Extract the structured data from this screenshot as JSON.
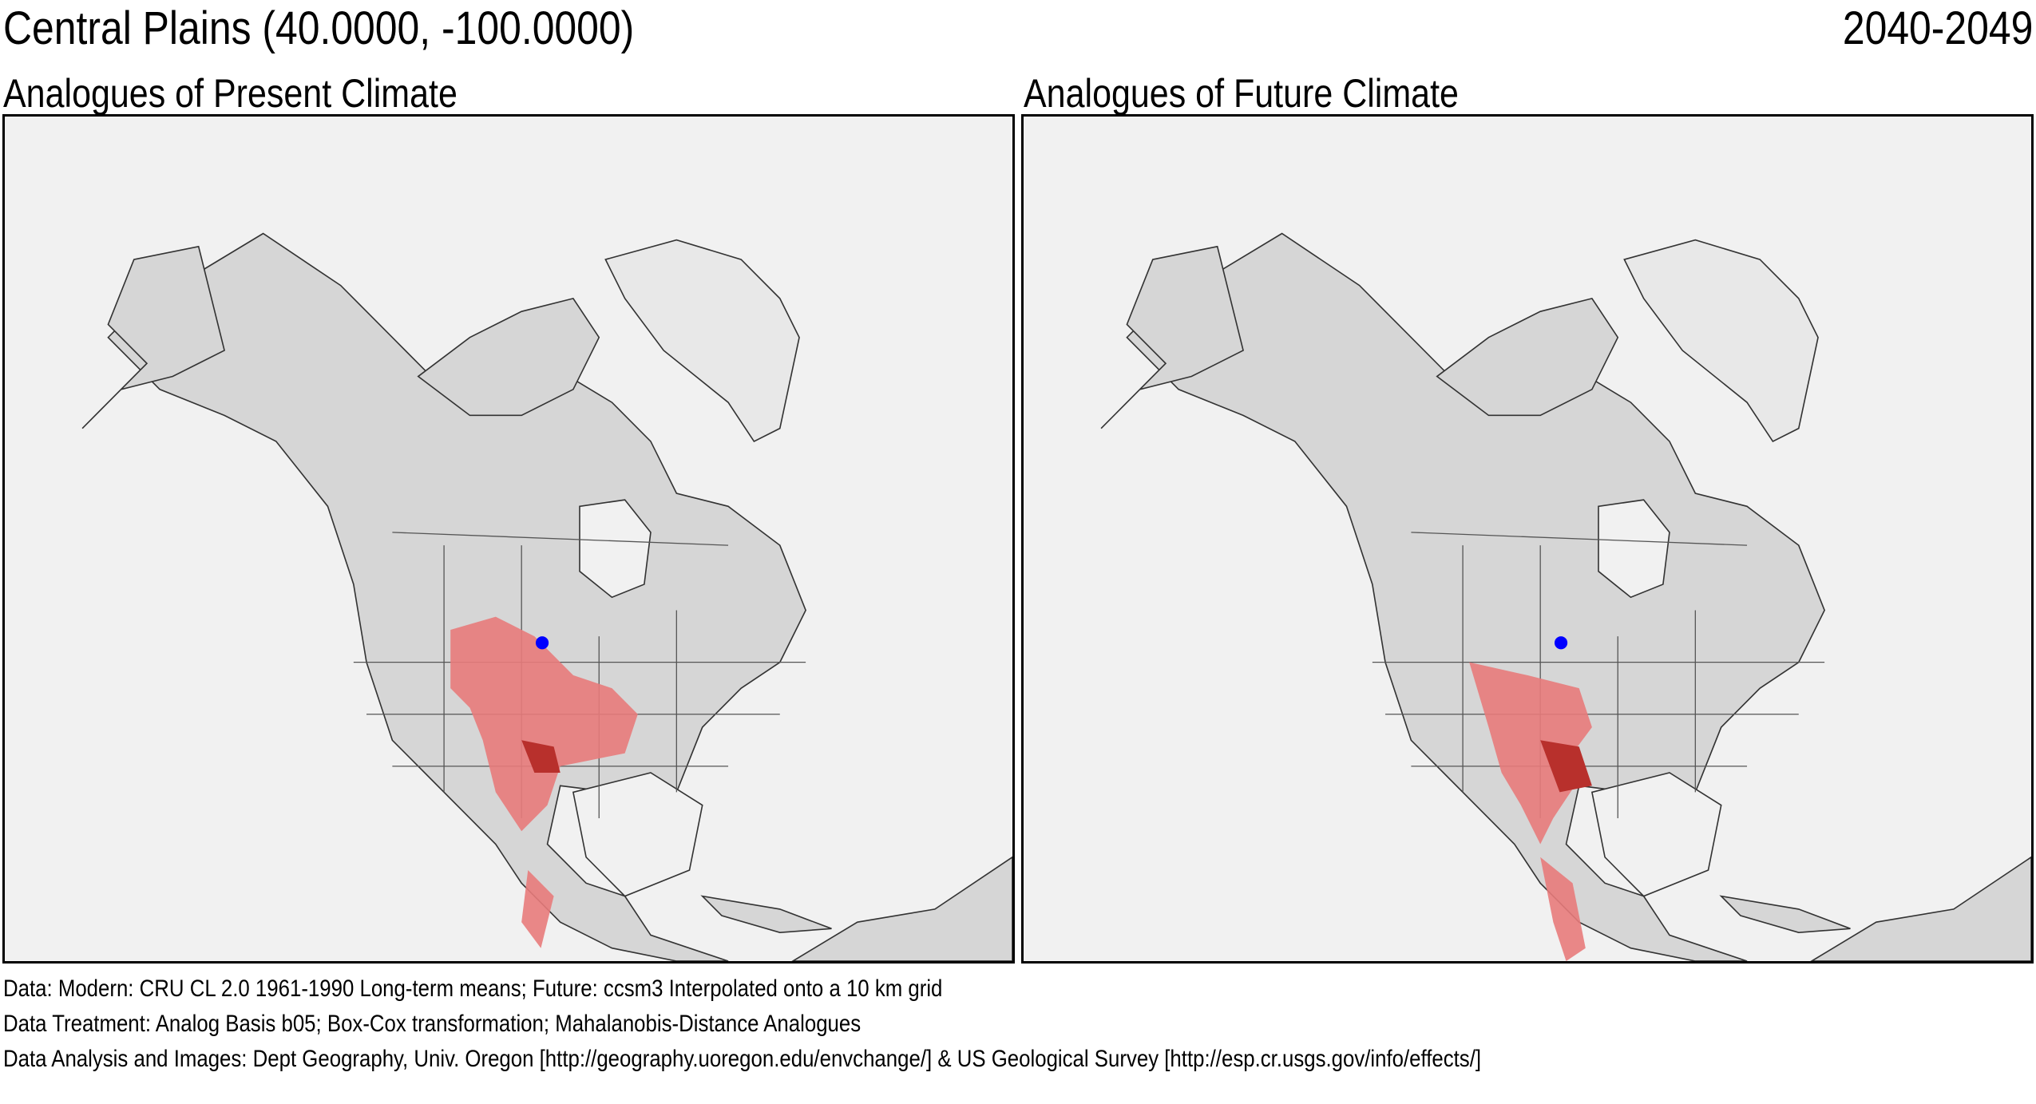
{
  "header": {
    "title": "Central Plains  (40.0000, -100.0000)",
    "period": "2040-2049"
  },
  "panels": [
    {
      "title": "Analogues of Present Climate",
      "analog_color": "#e87b7b",
      "strong_analog_color": "#b8302c"
    },
    {
      "title": "Analogues of Future Climate",
      "analog_color": "#e87b7b",
      "strong_analog_color": "#b8302c"
    }
  ],
  "map": {
    "site": {
      "lat": 40.0,
      "lon": -100.0,
      "marker_color": "#0000ff"
    },
    "land_color": "#d6d6d6",
    "water_color": "#f1f1f1"
  },
  "footer": {
    "line1": "Data:  Modern: CRU CL 2.0 1961-1990 Long-term means; Future: ccsm3 Interpolated onto a 10 km grid",
    "line2": "Data Treatment:  Analog Basis b05; Box-Cox transformation; Mahalanobis-Distance Analogues",
    "line3": "Data Analysis and Images:  Dept Geography, Univ. Oregon [http://geography.uoregon.edu/envchange/] & US Geological Survey [http://esp.cr.usgs.gov/info/effects/]"
  }
}
